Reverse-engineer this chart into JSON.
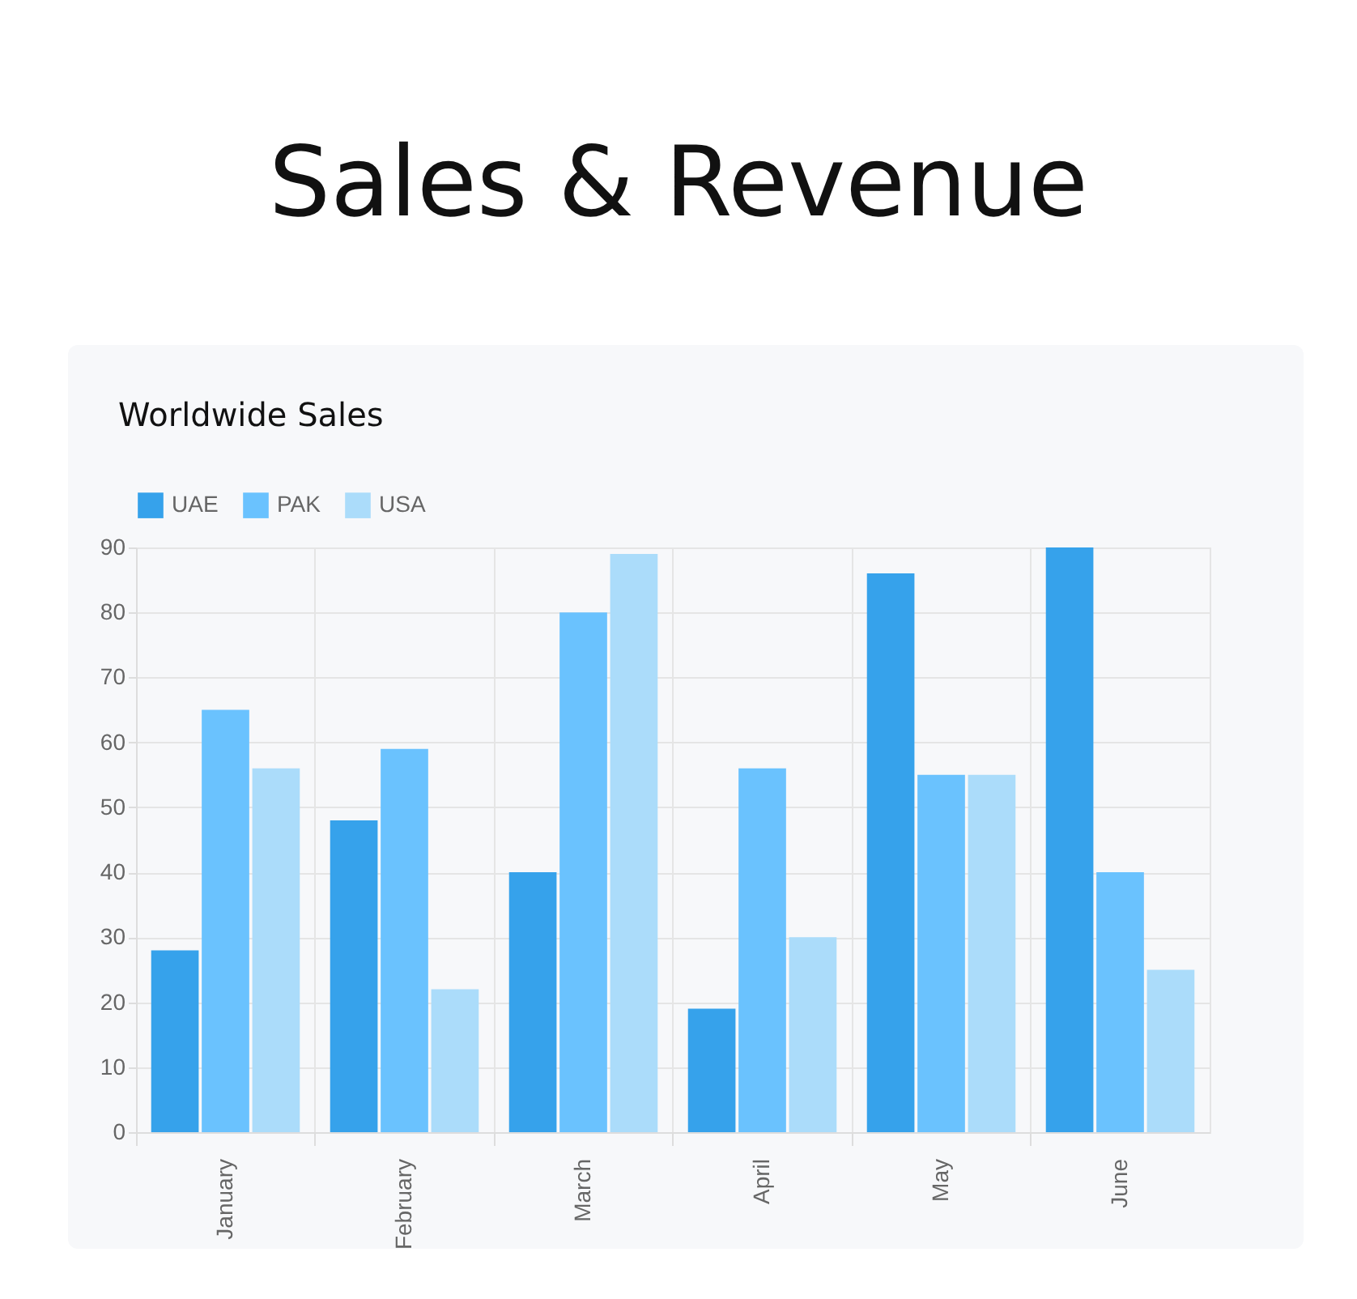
{
  "chart_data": {
    "type": "bar",
    "title": "Sales & Revenue",
    "subtitle": "Worldwide Sales",
    "categories": [
      "January",
      "February",
      "March",
      "April",
      "May",
      "June"
    ],
    "series": [
      {
        "name": "UAE",
        "color": "#36a2eb",
        "values": [
          28,
          48,
          40,
          19,
          86,
          90
        ]
      },
      {
        "name": "PAK",
        "color": "#6ac2fe",
        "values": [
          65,
          59,
          80,
          56,
          55,
          40
        ]
      },
      {
        "name": "USA",
        "color": "#abdcfa",
        "values": [
          56,
          22,
          89,
          30,
          55,
          25
        ]
      }
    ],
    "ylim": [
      0,
      90
    ],
    "yticks": [
      0,
      10,
      20,
      30,
      40,
      50,
      60,
      70,
      80,
      90
    ],
    "grid": true,
    "legend": "top"
  }
}
